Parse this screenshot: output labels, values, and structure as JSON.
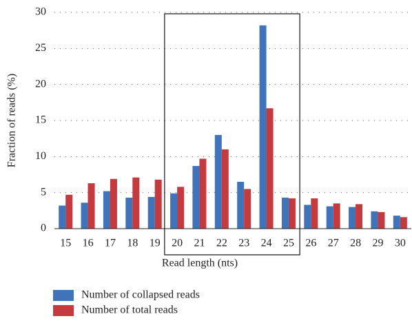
{
  "chart_data": {
    "type": "bar",
    "xlabel": "Read length (nts)",
    "ylabel": "Fraction of reads (%)",
    "categories": [
      "15",
      "16",
      "17",
      "18",
      "19",
      "20",
      "21",
      "22",
      "23",
      "24",
      "25",
      "26",
      "27",
      "28",
      "29",
      "30"
    ],
    "series": [
      {
        "name": "Number of collapsed reads",
        "color": "#3f74bb",
        "values": [
          3.2,
          3.6,
          5.2,
          4.3,
          4.4,
          4.9,
          8.7,
          13.0,
          6.5,
          28.2,
          4.3,
          3.3,
          3.1,
          3.0,
          2.4,
          1.8
        ]
      },
      {
        "name": "Number of total reads",
        "color": "#c43a3e",
        "values": [
          4.7,
          6.3,
          6.9,
          7.1,
          6.8,
          5.8,
          9.7,
          11.0,
          5.5,
          16.7,
          4.2,
          4.2,
          3.5,
          3.4,
          2.3,
          1.6
        ]
      }
    ],
    "ylim": [
      0,
      30
    ],
    "yticks": [
      0,
      5,
      10,
      15,
      20,
      25,
      30
    ],
    "grid": true
  }
}
